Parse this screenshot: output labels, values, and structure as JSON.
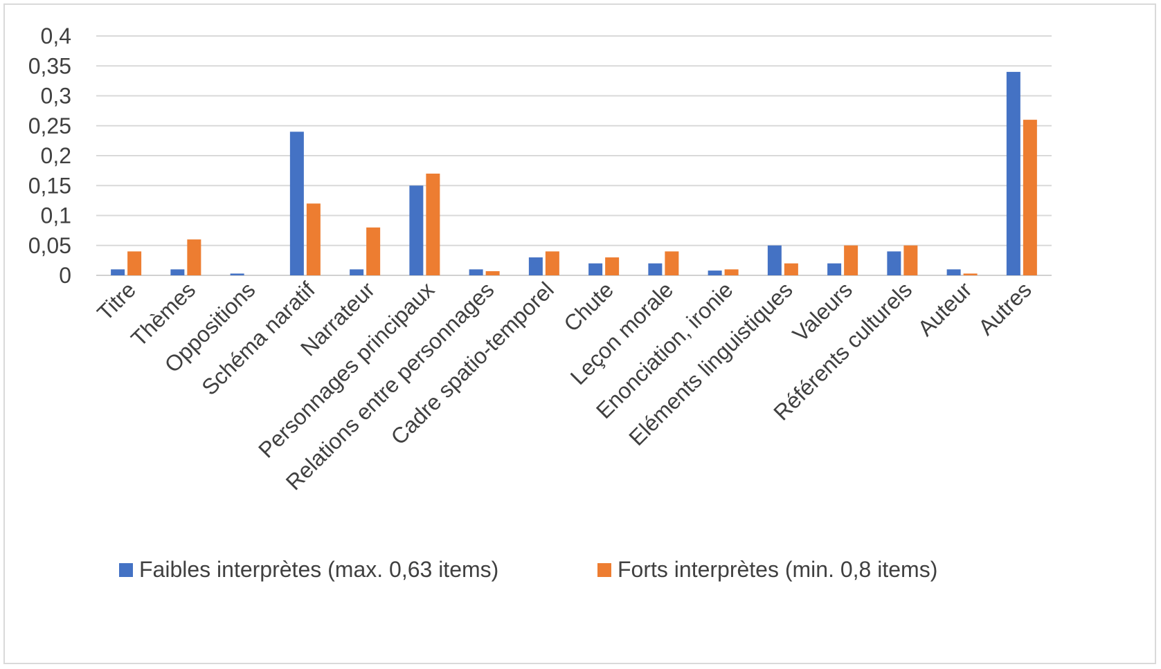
{
  "chart_data": {
    "type": "bar",
    "categories": [
      "Titre",
      "Thèmes",
      "Oppositions",
      "Schéma naratif",
      "Narrateur",
      "Personnages principaux",
      "Relations entre personnages",
      "Cadre spatio-temporel",
      "Chute",
      "Leçon morale",
      "Enonciation, ironie",
      "Eléments linguistiques",
      "Valeurs",
      "Référents culturels",
      "Auteur",
      "Autres"
    ],
    "series": [
      {
        "name": "Faibles interprètes (max. 0,63 items)",
        "color": "#4472C4",
        "values": [
          0.01,
          0.01,
          0.003,
          0.24,
          0.01,
          0.15,
          0.01,
          0.03,
          0.02,
          0.02,
          0.008,
          0.05,
          0.02,
          0.04,
          0.01,
          0.34
        ]
      },
      {
        "name": "Forts interprètes (min. 0,8 items)",
        "color": "#ED7D31",
        "values": [
          0.04,
          0.06,
          0.0,
          0.12,
          0.08,
          0.17,
          0.007,
          0.04,
          0.03,
          0.04,
          0.01,
          0.02,
          0.05,
          0.05,
          0.003,
          0.26
        ]
      }
    ],
    "yticks": [
      "0",
      "0,05",
      "0,1",
      "0,15",
      "0,2",
      "0,25",
      "0,3",
      "0,35",
      "0,4"
    ],
    "ylim": [
      0,
      0.4
    ],
    "grid": true,
    "legend_position": "bottom",
    "title": "",
    "xlabel": "",
    "ylabel": ""
  }
}
